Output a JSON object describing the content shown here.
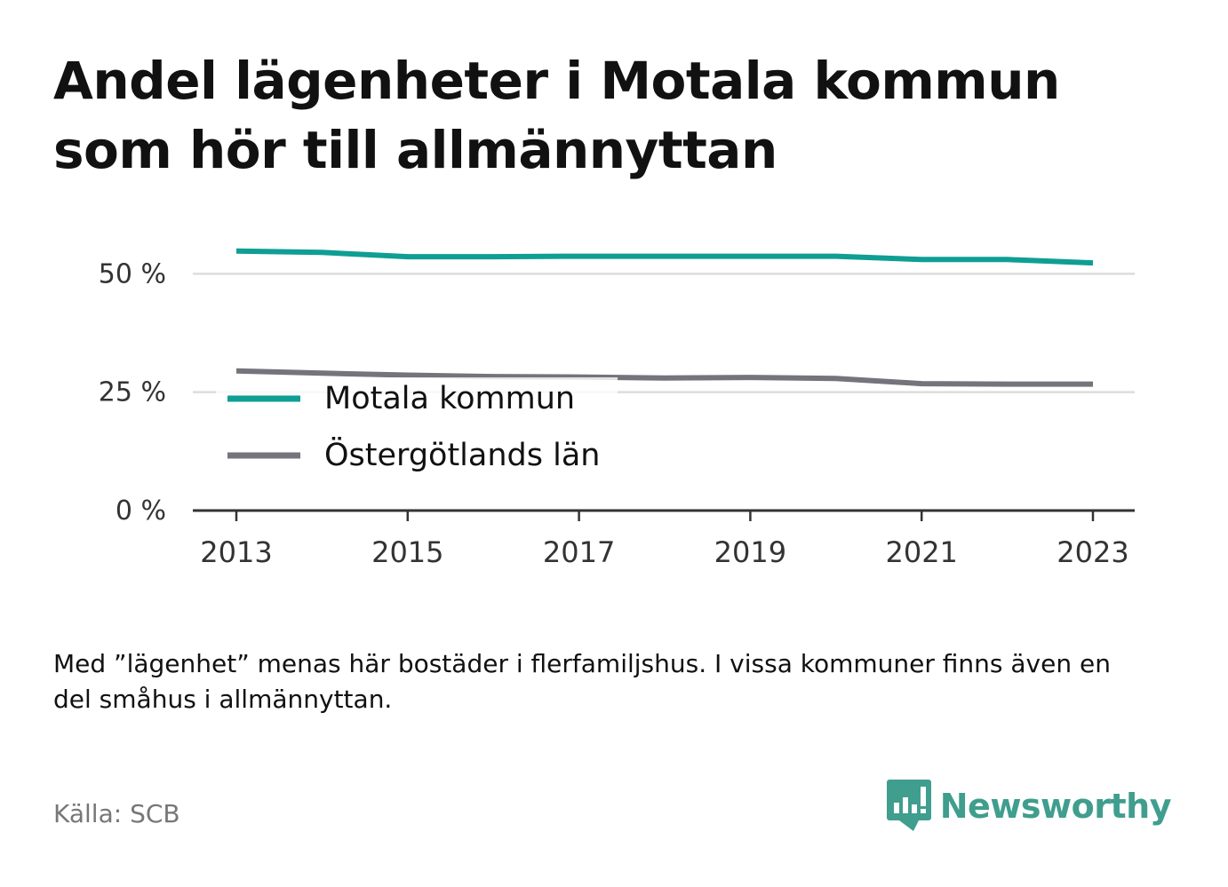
{
  "title": "Andel lägenheter i Motala kommun som hör till allmännyttan",
  "note": "Med ”lägenhet” menas här bostäder i flerfamiljshus. I vissa kommuner finns även en del småhus i allmännyttan.",
  "source": "Källa: SCB",
  "brand": "Newsworthy",
  "brand_icon": "newsworthy-logo-icon",
  "colors": {
    "motala": "#0f9e94",
    "ostergotland": "#74747c",
    "grid": "#dddddd",
    "axis": "#333333",
    "brand": "#3f9e8e"
  },
  "chart_data": {
    "type": "line",
    "x": [
      2013,
      2014,
      2015,
      2016,
      2017,
      2018,
      2019,
      2020,
      2021,
      2022,
      2023
    ],
    "x_ticks": [
      "2013",
      "2015",
      "2017",
      "2019",
      "2021",
      "2023"
    ],
    "y_ticks": [
      "0 %",
      "25 %",
      "50 %"
    ],
    "y_tick_values": [
      0,
      25,
      50
    ],
    "ylim": [
      0,
      60
    ],
    "xlim": [
      2012.5,
      2023.5
    ],
    "grid": true,
    "legend_position": "center-left",
    "series": [
      {
        "name": "Motala kommun",
        "color": "#0f9e94",
        "values": [
          54.8,
          54.5,
          53.6,
          53.6,
          53.7,
          53.7,
          53.7,
          53.7,
          53.0,
          53.0,
          52.3
        ]
      },
      {
        "name": "Östergötlands län",
        "color": "#74747c",
        "values": [
          29.5,
          29.0,
          28.6,
          28.3,
          28.2,
          28.0,
          28.1,
          27.9,
          26.8,
          26.7,
          26.7
        ]
      }
    ]
  }
}
